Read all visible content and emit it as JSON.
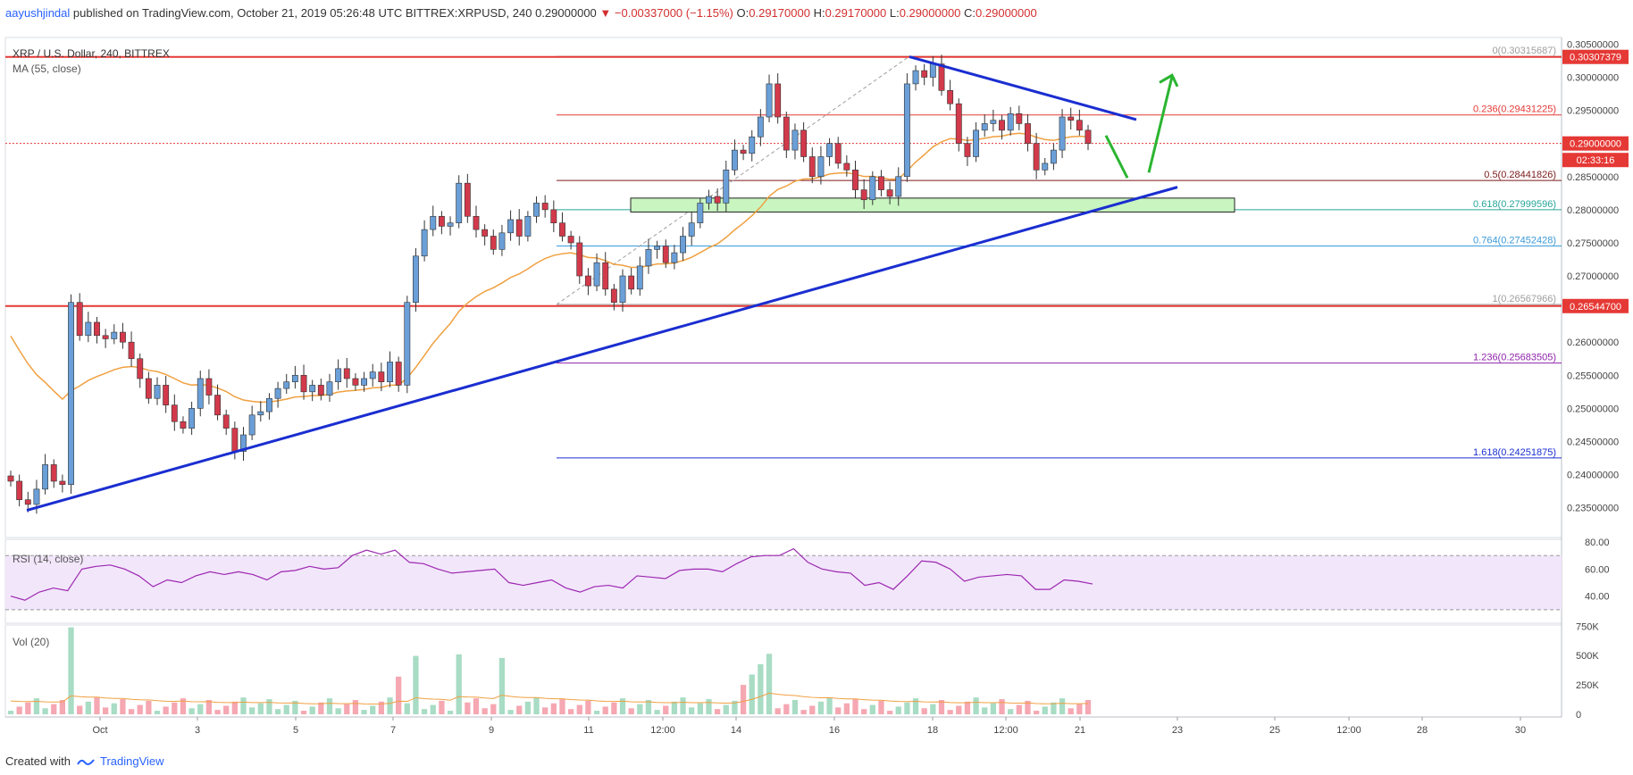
{
  "header": {
    "username": "aayushjindal",
    "published_on": "published on TradingView.com, October 21, 2019 05:26:48 UTC",
    "symbol_line": "BITTREX:XRPUSD, 240",
    "last": "0.29000000",
    "change": "▼ −0.00337000 (−1.15%)",
    "o_label": "O:",
    "o_value": "0.29170000",
    "h_label": "H:",
    "h_value": "0.29170000",
    "l_label": "L:",
    "l_value": "0.29000000",
    "c_label": "C:",
    "c_value": "0.29000000"
  },
  "footer": {
    "created_with": "Created with",
    "brand": "TradingView"
  },
  "colors": {
    "up": "#6a9fd8",
    "down": "#d23a4b",
    "ma": "#f0a040",
    "trend": "#1a2ed0",
    "horizontal": "#e53935",
    "zone_fill": "#c8f5c0",
    "arrow": "#2ab530",
    "rsi_line": "#9c27b0",
    "rsi_band": "#f2e6fb",
    "vol_up": "#a8dcc4",
    "vol_down": "#f5a7b2",
    "vol_ma": "#f0a040"
  },
  "chart_data": {
    "type": "candlestick",
    "title": "XRP / U.S. Dollar, 240, BITTREX",
    "indicator_label": "MA (55, close)",
    "ylim": [
      0.2305,
      0.306
    ],
    "yticks": [
      "0.30500000",
      "0.30000000",
      "0.29500000",
      "0.29000000",
      "0.28500000",
      "0.28000000",
      "0.27500000",
      "0.27000000",
      "0.26500000",
      "0.26000000",
      "0.25500000",
      "0.25000000",
      "0.24500000",
      "0.24000000",
      "0.23500000"
    ],
    "xlim": [
      28.73,
      31.4
    ],
    "x_unit": "date (day of October 2019; 30–31 shown as 28.9–31.x in day index after month wrap)",
    "xticks": [
      {
        "label": "Oct",
        "day": 1
      },
      {
        "label": "3",
        "day": 3
      },
      {
        "label": "5",
        "day": 5
      },
      {
        "label": "7",
        "day": 7
      },
      {
        "label": "9",
        "day": 9
      },
      {
        "label": "11",
        "day": 11
      },
      {
        "label": "12:00",
        "day": 12
      },
      {
        "label": "14",
        "day": 14
      },
      {
        "label": "16",
        "day": 16
      },
      {
        "label": "18",
        "day": 18
      },
      {
        "label": "12:00",
        "day": 19
      },
      {
        "label": "21",
        "day": 21
      },
      {
        "label": "23",
        "day": 23
      },
      {
        "label": "25",
        "day": 25
      },
      {
        "label": "12:00",
        "day": 26
      },
      {
        "label": "28",
        "day": 28
      },
      {
        "label": "30",
        "day": 30
      }
    ],
    "price_badges": [
      {
        "value": "0.30307379",
        "price": 0.30307,
        "color": "#e53935"
      },
      {
        "value": "0.29000000",
        "price": 0.29,
        "color": "#e53935"
      },
      {
        "value": "02:33:16",
        "price": 0.2875,
        "color": "#e53935"
      },
      {
        "value": "0.26544700",
        "price": 0.26545,
        "color": "#e53935"
      }
    ],
    "horizontal_lines": [
      {
        "price": 0.30307,
        "color": "#e53935"
      },
      {
        "price": 0.26545,
        "color": "#e53935"
      }
    ],
    "fib_levels": [
      {
        "label": "0(0.30315687)",
        "price": 0.30316,
        "color": "#9e9e9e"
      },
      {
        "label": "0.236(0.29431225)",
        "price": 0.29431,
        "color": "#e53935"
      },
      {
        "label": "0.5(0.28441826)",
        "price": 0.28442,
        "color": "#7b1a1a"
      },
      {
        "label": "0.618(0.27999596)",
        "price": 0.28,
        "color": "#26a69a"
      },
      {
        "label": "0.764(0.27452428)",
        "price": 0.27452,
        "color": "#3a9ad9"
      },
      {
        "label": "1(0.26567966)",
        "price": 0.26568,
        "color": "#9e9e9e"
      },
      {
        "label": "1.236(0.25683505)",
        "price": 0.25684,
        "color": "#8e24aa"
      },
      {
        "label": "1.618(0.24251875)",
        "price": 0.24252,
        "color": "#1a2ed0"
      }
    ],
    "fib_start_day": 10.7,
    "fib_anchor": {
      "from": {
        "day": 10.7,
        "price": 0.26568
      },
      "to": {
        "day": 17.4,
        "price": 0.30316
      }
    },
    "support_zone": {
      "from_day": 11.1,
      "to_day": 24.3,
      "low": 0.27965,
      "high": 0.28175
    },
    "trend_lines": [
      {
        "from": {
          "day": 29.2,
          "price": 0.2346
        },
        "to": {
          "day": 22.2,
          "price": 0.28345
        }
      },
      {
        "from": {
          "day": 17.4,
          "price": 0.3031
        },
        "to": {
          "day": 21.9,
          "price": 0.2936
        }
      }
    ],
    "green_arrow": {
      "points": [
        {
          "day": 20.5,
          "price": 0.2911
        },
        {
          "day": 21.3,
          "price": 0.28475
        },
        {
          "day": 21.8,
          "price": 0.3001
        }
      ]
    },
    "candles": [
      {
        "d": 28.75,
        "o": 0.239,
        "h": 0.24,
        "l": 0.2375,
        "c": 0.2382
      },
      {
        "d": 28.92,
        "o": 0.2382,
        "h": 0.2388,
        "l": 0.2355,
        "c": 0.236
      },
      {
        "d": 29.08,
        "o": 0.236,
        "h": 0.237,
        "l": 0.2348,
        "c": 0.2352
      },
      {
        "d": 29.25,
        "o": 0.2352,
        "h": 0.2382,
        "l": 0.235,
        "c": 0.2378
      },
      {
        "d": 29.42,
        "o": 0.2378,
        "h": 0.242,
        "l": 0.2372,
        "c": 0.2415
      },
      {
        "d": 29.58,
        "o": 0.2388,
        "h": 0.2395,
        "l": 0.2378,
        "c": 0.2392
      },
      {
        "d": 29.75,
        "o": 0.2392,
        "h": 0.24,
        "l": 0.238,
        "c": 0.2385
      },
      {
        "d": 29.92,
        "o": 0.2385,
        "h": 0.2665,
        "l": 0.238,
        "c": 0.266
      },
      {
        "d": 30.08,
        "o": 0.261,
        "h": 0.2625,
        "l": 0.258,
        "c": 0.2615
      },
      {
        "d": 30.25,
        "o": 0.2615,
        "h": 0.2625,
        "l": 0.257,
        "c": 0.258
      },
      {
        "d": 30.42,
        "o": 0.258,
        "h": 0.261,
        "l": 0.256,
        "c": 0.259
      },
      {
        "d": 30.58,
        "o": 0.259,
        "h": 0.2605,
        "l": 0.2515,
        "c": 0.2595
      },
      {
        "d": 30.75,
        "o": 0.2595,
        "h": 0.2625,
        "l": 0.2585,
        "c": 0.261
      },
      {
        "d": 30.92,
        "o": 0.2605,
        "h": 0.2615,
        "l": 0.2585,
        "c": 0.26
      },
      {
        "d": 31.08,
        "o": 0.26,
        "h": 0.261,
        "l": 0.256,
        "c": 0.2575
      },
      {
        "d": 31.25,
        "o": 0.2575,
        "h": 0.258,
        "l": 0.253,
        "c": 0.255
      }
    ],
    "rsi": {
      "label": "RSI (14, close)",
      "ylim": [
        20,
        82
      ],
      "yticks": [
        "80.00",
        "60.00",
        "40.00"
      ],
      "band": [
        30,
        70
      ],
      "values": [
        40,
        37,
        43,
        46,
        44,
        60,
        62,
        63,
        60,
        55,
        47,
        52,
        50,
        55,
        58,
        56,
        58,
        56,
        52,
        58,
        59,
        62,
        60,
        61,
        70,
        74,
        71,
        74,
        65,
        64,
        60,
        57,
        58,
        59,
        60,
        50,
        48,
        50,
        52,
        46,
        43,
        47,
        48,
        46,
        55,
        54,
        53,
        59,
        60,
        60,
        58,
        64,
        69,
        70,
        70,
        75,
        65,
        60,
        58,
        57,
        48,
        50,
        45,
        55,
        66,
        65,
        60,
        51,
        54,
        55,
        56,
        55,
        45,
        45,
        52,
        51,
        49
      ]
    },
    "volume": {
      "label": "Vol (20)",
      "ylim": [
        0,
        760000
      ],
      "yticks": [
        "750K",
        "500K",
        "250K",
        "0"
      ]
    }
  }
}
